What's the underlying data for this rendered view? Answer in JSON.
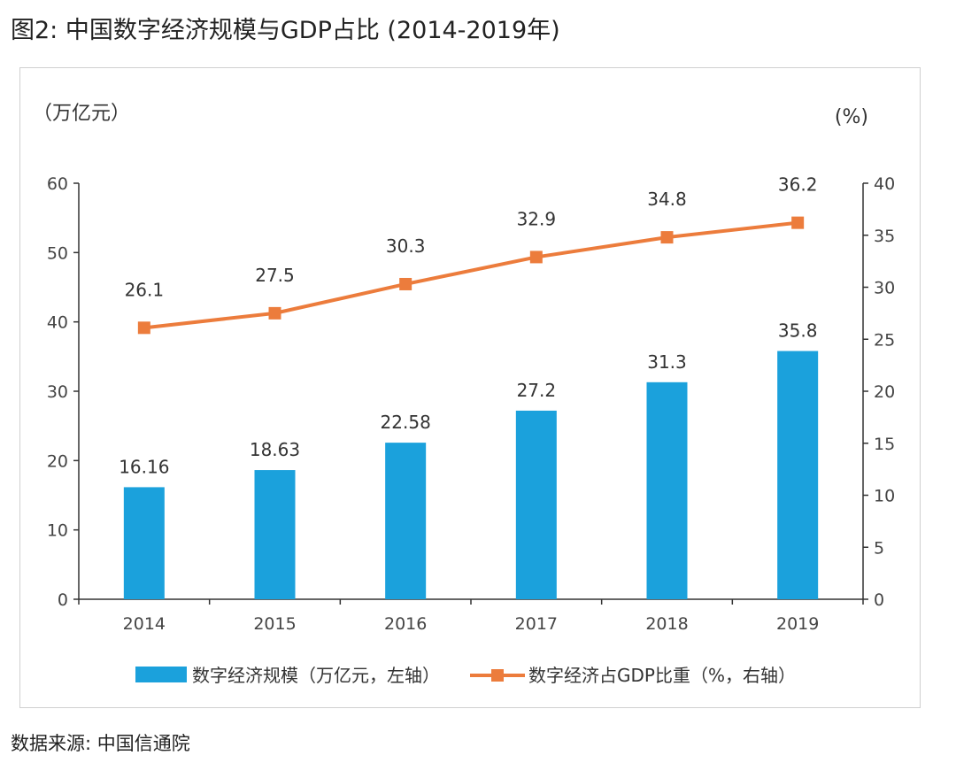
{
  "figure": {
    "title": "图2: 中国数字经济规模与GDP占比 (2014-2019年)",
    "source": "数据来源: 中国信通院"
  },
  "colors": {
    "bar": "#1ba1dc",
    "line": "#ec7c3c",
    "axis": "#333333"
  },
  "chart_data": {
    "type": "bar",
    "categories": [
      "2014",
      "2015",
      "2016",
      "2017",
      "2018",
      "2019"
    ],
    "series": [
      {
        "name": "数字经济规模（万亿元，左轴）",
        "type": "bar",
        "axis": "left",
        "values": [
          16.16,
          18.63,
          22.58,
          27.2,
          31.3,
          35.8
        ],
        "labels": [
          "16.16",
          "18.63",
          "22.58",
          "27.2",
          "31.3",
          "35.8"
        ]
      },
      {
        "name": "数字经济占GDP比重（%，右轴）",
        "type": "line",
        "axis": "right",
        "values": [
          26.1,
          27.5,
          30.3,
          32.9,
          34.8,
          36.2
        ],
        "labels": [
          "26.1",
          "27.5",
          "30.3",
          "32.9",
          "34.8",
          "36.2"
        ]
      }
    ],
    "y_left": {
      "unit_label": "（万亿元）",
      "range": [
        0,
        60
      ],
      "ticks": [
        "0",
        "10",
        "20",
        "30",
        "40",
        "50",
        "60"
      ]
    },
    "y_right": {
      "unit_label": "(%)",
      "range": [
        0,
        40
      ],
      "ticks": [
        "0",
        "5",
        "10",
        "15",
        "20",
        "25",
        "30",
        "35",
        "40"
      ]
    },
    "grid": false,
    "legend_position": "bottom"
  }
}
